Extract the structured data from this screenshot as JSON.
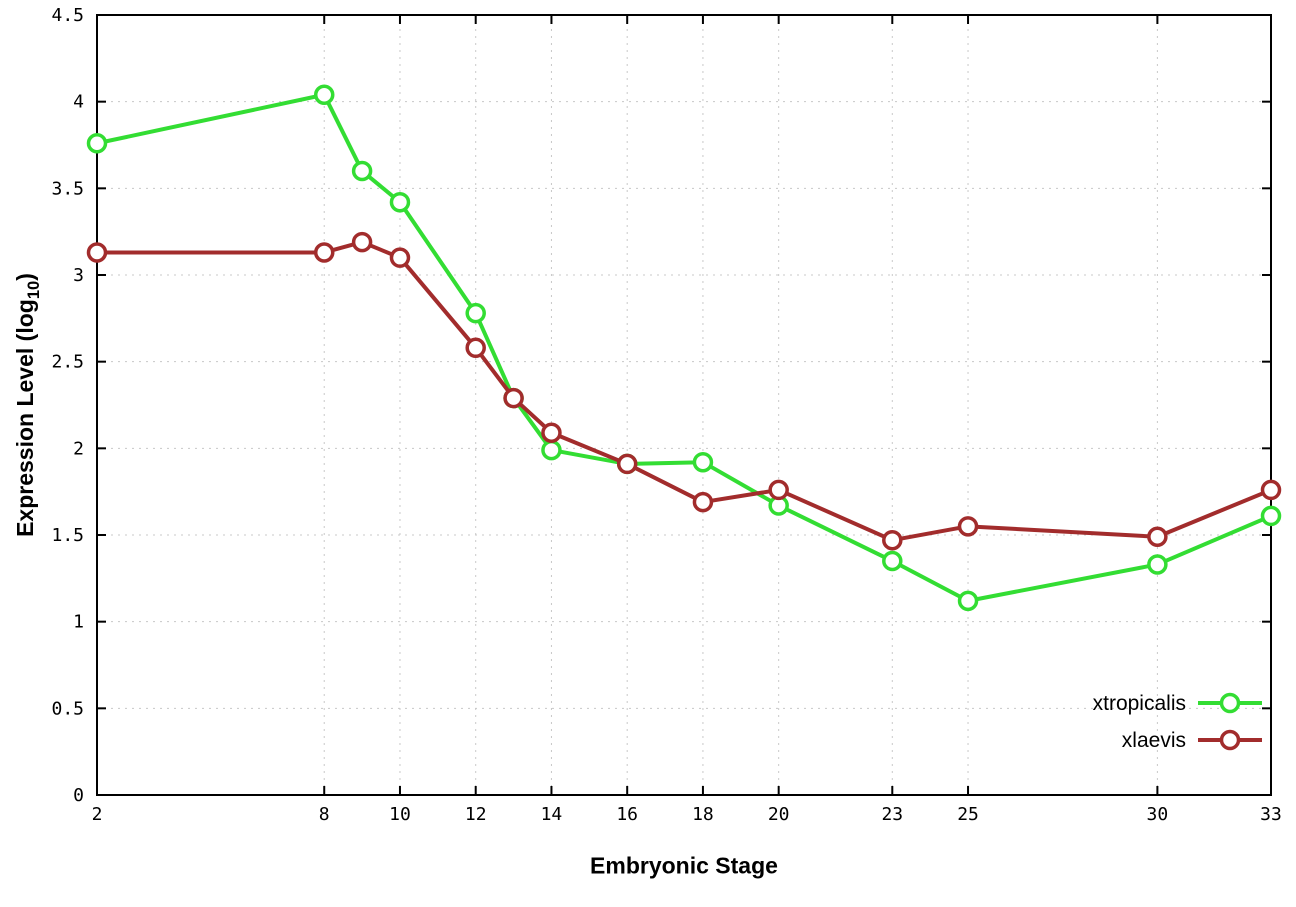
{
  "chart_data": {
    "type": "line",
    "title": "",
    "xlabel": "Embryonic Stage",
    "ylabel": {
      "pre": "Expression Level (log",
      "sub": "10",
      "post": ")"
    },
    "xlim": [
      2,
      33
    ],
    "ylim": [
      0,
      4.5
    ],
    "xticks": [
      2,
      8,
      10,
      12,
      14,
      16,
      18,
      20,
      23,
      25,
      30,
      33
    ],
    "yticks": [
      0,
      0.5,
      1,
      1.5,
      2,
      2.5,
      3,
      3.5,
      4,
      4.5
    ],
    "ytick_labels": [
      "0",
      "0.5",
      "1",
      "1.5",
      "2",
      "2.5",
      "3",
      "3.5",
      "4",
      "4.5"
    ],
    "grid": true,
    "legend_position": "inside-bottom-right",
    "marker": "open-circle",
    "x": [
      2,
      8,
      9,
      10,
      12,
      13,
      14,
      16,
      18,
      20,
      23,
      25,
      30,
      33
    ],
    "series": [
      {
        "name": "xtropicalis",
        "color": "#33dd33",
        "values": [
          3.76,
          4.04,
          3.6,
          3.42,
          2.78,
          2.29,
          1.99,
          1.91,
          1.92,
          1.67,
          1.35,
          1.12,
          1.33,
          1.61
        ]
      },
      {
        "name": "xlaevis",
        "color": "#a22c2c",
        "values": [
          3.13,
          3.13,
          3.19,
          3.1,
          2.58,
          2.29,
          2.09,
          1.91,
          1.69,
          1.76,
          1.47,
          1.55,
          1.49,
          1.76
        ]
      }
    ],
    "colors": {
      "background": "#ffffff",
      "grid": "#c8c8c8",
      "axis": "#000000",
      "text": "#000000"
    }
  }
}
